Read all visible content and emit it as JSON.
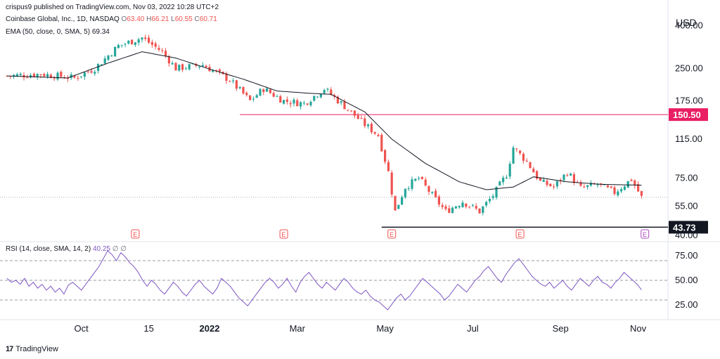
{
  "header": {
    "publisher_line": "crispus9 published on TradingView.com, Nov 03, 2022 10:28 UTC+2",
    "symbol": "Coinbase Global, Inc., 1D, NASDAQ",
    "ohlc": {
      "o_label": "O",
      "o": "63.40",
      "h_label": "H",
      "h": "66.21",
      "l_label": "L",
      "l": "60.55",
      "c_label": "C",
      "c": "60.71"
    },
    "ema_label": "EMA (50, close, 0, SMA, 5)",
    "ema_value": "69.34",
    "rsi_label": "RSI (14, close, SMA, 14, 2)",
    "rsi_value": "40.25",
    "rsi_extra": "∅ ∅"
  },
  "currency": "USD",
  "footer": {
    "logo": "17",
    "brand": "TradingView"
  },
  "colors": {
    "up": "#26a69a",
    "down": "#ef5350",
    "ema": "#131722",
    "resistance": "#e91e63",
    "support": "#131722",
    "rsi": "#7e57c2",
    "earnings": "#ef5350",
    "earnings_next": "#ab47bc"
  },
  "chart_data": [
    {
      "type": "candlestick",
      "scale": "log",
      "ylim": [
        40,
        420
      ],
      "yticks": [
        {
          "value": 400,
          "label": "400.00"
        },
        {
          "value": 250,
          "label": "250.00"
        },
        {
          "value": 175,
          "label": "175.00"
        },
        {
          "value": 115,
          "label": "115.00"
        },
        {
          "value": 75,
          "label": "75.00"
        },
        {
          "value": 55,
          "label": "55.00"
        },
        {
          "value": 40,
          "label": "40.00"
        }
      ],
      "xticks": [
        {
          "index": 22,
          "label": "Oct"
        },
        {
          "index": 42,
          "label": "15"
        },
        {
          "index": 60,
          "label": "2022"
        },
        {
          "index": 86,
          "label": "Mar"
        },
        {
          "index": 112,
          "label": "May"
        },
        {
          "index": 138,
          "label": "Jul"
        },
        {
          "index": 164,
          "label": "Sep"
        },
        {
          "index": 187,
          "label": "Nov"
        }
      ],
      "levels": [
        {
          "name": "resistance",
          "value": 150.5,
          "label": "150.50",
          "start_index": 69
        },
        {
          "name": "support",
          "value": 43.73,
          "label": "43.73",
          "start_index": 111
        }
      ],
      "last_price_line": 60.71,
      "earnings_markers": [
        {
          "index": 38,
          "label": "E",
          "type": "past"
        },
        {
          "index": 82,
          "label": "E",
          "type": "past"
        },
        {
          "index": 114,
          "label": "E",
          "type": "past"
        },
        {
          "index": 152,
          "label": "E",
          "type": "past"
        },
        {
          "index": 189,
          "label": "E",
          "type": "next"
        }
      ],
      "key_closes": [
        {
          "index": 0,
          "close": 230
        },
        {
          "index": 10,
          "close": 235
        },
        {
          "index": 20,
          "close": 225
        },
        {
          "index": 26,
          "close": 250
        },
        {
          "index": 33,
          "close": 320
        },
        {
          "index": 40,
          "close": 350
        },
        {
          "index": 46,
          "close": 300
        },
        {
          "index": 50,
          "close": 250
        },
        {
          "index": 58,
          "close": 260
        },
        {
          "index": 66,
          "close": 220
        },
        {
          "index": 72,
          "close": 175
        },
        {
          "index": 76,
          "close": 200
        },
        {
          "index": 82,
          "close": 175
        },
        {
          "index": 88,
          "close": 170
        },
        {
          "index": 94,
          "close": 200
        },
        {
          "index": 100,
          "close": 165
        },
        {
          "index": 106,
          "close": 135
        },
        {
          "index": 110,
          "close": 120
        },
        {
          "index": 113,
          "close": 80
        },
        {
          "index": 115,
          "close": 52
        },
        {
          "index": 118,
          "close": 68
        },
        {
          "index": 122,
          "close": 75
        },
        {
          "index": 126,
          "close": 62
        },
        {
          "index": 130,
          "close": 52
        },
        {
          "index": 135,
          "close": 58
        },
        {
          "index": 140,
          "close": 52
        },
        {
          "index": 144,
          "close": 62
        },
        {
          "index": 148,
          "close": 78
        },
        {
          "index": 150,
          "close": 105
        },
        {
          "index": 154,
          "close": 90
        },
        {
          "index": 158,
          "close": 72
        },
        {
          "index": 162,
          "close": 68
        },
        {
          "index": 166,
          "close": 80
        },
        {
          "index": 170,
          "close": 67
        },
        {
          "index": 175,
          "close": 70
        },
        {
          "index": 180,
          "close": 64
        },
        {
          "index": 185,
          "close": 74
        },
        {
          "index": 188,
          "close": 60.71
        }
      ],
      "ema": [
        {
          "index": 0,
          "value": 230
        },
        {
          "index": 18,
          "value": 225
        },
        {
          "index": 30,
          "value": 265
        },
        {
          "index": 40,
          "value": 300
        },
        {
          "index": 50,
          "value": 280
        },
        {
          "index": 60,
          "value": 248
        },
        {
          "index": 70,
          "value": 222
        },
        {
          "index": 80,
          "value": 195
        },
        {
          "index": 90,
          "value": 190
        },
        {
          "index": 96,
          "value": 188
        },
        {
          "index": 106,
          "value": 155
        },
        {
          "index": 114,
          "value": 115
        },
        {
          "index": 124,
          "value": 88
        },
        {
          "index": 134,
          "value": 72
        },
        {
          "index": 142,
          "value": 66
        },
        {
          "index": 150,
          "value": 68
        },
        {
          "index": 156,
          "value": 76
        },
        {
          "index": 166,
          "value": 72
        },
        {
          "index": 176,
          "value": 70
        },
        {
          "index": 188,
          "value": 69.34
        }
      ]
    },
    {
      "type": "line",
      "name": "RSI",
      "ylim": [
        15,
        85
      ],
      "yticks": [
        {
          "value": 75,
          "label": "75.00"
        },
        {
          "value": 50,
          "label": "50.00"
        },
        {
          "value": 25,
          "label": "25.00"
        }
      ],
      "bands": [
        70,
        50,
        30
      ],
      "values": [
        52,
        48,
        50,
        46,
        52,
        44,
        48,
        42,
        46,
        40,
        44,
        38,
        42,
        36,
        45,
        48,
        44,
        40,
        46,
        52,
        58,
        64,
        72,
        80,
        76,
        70,
        78,
        74,
        68,
        64,
        58,
        50,
        44,
        50,
        46,
        40,
        36,
        42,
        48,
        44,
        38,
        34,
        40,
        46,
        50,
        44,
        40,
        36,
        42,
        52,
        48,
        44,
        38,
        32,
        28,
        24,
        30,
        36,
        42,
        48,
        52,
        48,
        42,
        46,
        52,
        44,
        38,
        48,
        54,
        58,
        52,
        46,
        42,
        48,
        44,
        40,
        46,
        52,
        48,
        42,
        38,
        36,
        40,
        34,
        30,
        28,
        24,
        20,
        26,
        32,
        36,
        30,
        34,
        40,
        46,
        52,
        48,
        44,
        40,
        36,
        30,
        34,
        40,
        46,
        42,
        38,
        44,
        50,
        54,
        60,
        64,
        58,
        52,
        48,
        56,
        62,
        68,
        72,
        66,
        60,
        54,
        50,
        46,
        44,
        48,
        42,
        46,
        50,
        44,
        40,
        46,
        52,
        48,
        44,
        50,
        54,
        48,
        46,
        42,
        48,
        52,
        58,
        54,
        50,
        46,
        40.25
      ],
      "start_index": 0
    }
  ]
}
